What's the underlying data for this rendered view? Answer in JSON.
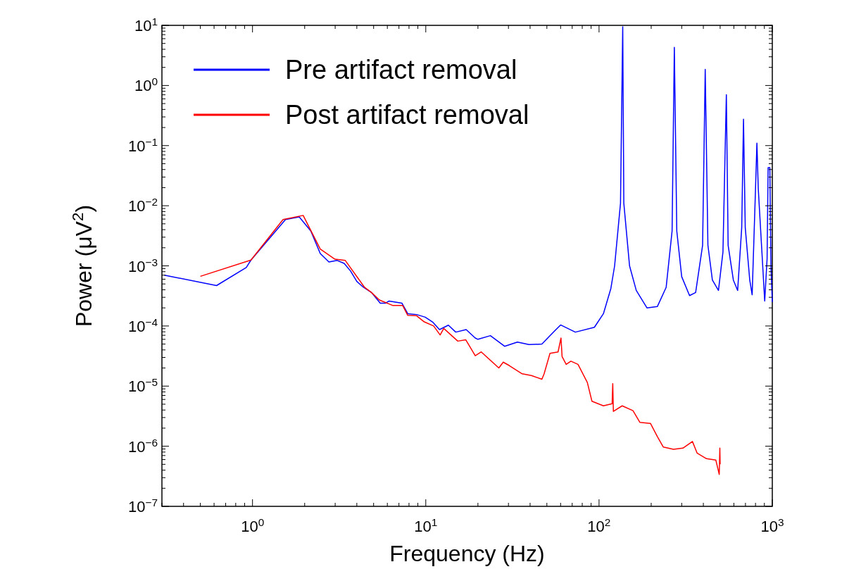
{
  "chart_data": {
    "type": "line",
    "xlabel": "Frequency (Hz)",
    "ylabel": "Power (μV$^{2}$)",
    "log": "xy",
    "grid": false,
    "legend": "top left",
    "line_style": "solid",
    "marker": "none",
    "xlim": [
      0.3,
      1000
    ],
    "ylim": [
      1e-07,
      10
    ],
    "xticks": [
      {
        "value": 0.3,
        "label": null
      },
      {
        "value": 0.4,
        "label": null
      },
      {
        "value": 0.5,
        "label": null
      },
      {
        "value": 0.6,
        "label": null
      },
      {
        "value": 0.7,
        "label": null
      },
      {
        "value": 0.8,
        "label": null
      },
      {
        "value": 0.9,
        "label": null
      },
      {
        "value": 1,
        "label": "10$^{0}$"
      },
      {
        "value": 2,
        "label": null
      },
      {
        "value": 3,
        "label": null
      },
      {
        "value": 4,
        "label": null
      },
      {
        "value": 5,
        "label": null
      },
      {
        "value": 6,
        "label": null
      },
      {
        "value": 7,
        "label": null
      },
      {
        "value": 8,
        "label": null
      },
      {
        "value": 9,
        "label": null
      },
      {
        "value": 10,
        "label": "10$^{1}$"
      },
      {
        "value": 20,
        "label": null
      },
      {
        "value": 30,
        "label": null
      },
      {
        "value": 40,
        "label": null
      },
      {
        "value": 50,
        "label": null
      },
      {
        "value": 60,
        "label": null
      },
      {
        "value": 70,
        "label": null
      },
      {
        "value": 80,
        "label": null
      },
      {
        "value": 90,
        "label": null
      },
      {
        "value": 100,
        "label": "10$^{2}$"
      },
      {
        "value": 200,
        "label": null
      },
      {
        "value": 300,
        "label": null
      },
      {
        "value": 400,
        "label": null
      },
      {
        "value": 500,
        "label": null
      },
      {
        "value": 600,
        "label": null
      },
      {
        "value": 700,
        "label": null
      },
      {
        "value": 800,
        "label": null
      },
      {
        "value": 900,
        "label": null
      },
      {
        "value": 1000,
        "label": "10$^{3}$"
      }
    ],
    "yticks": [
      {
        "value": 1e-07,
        "label": "10$^{−7}$"
      },
      {
        "value": 2e-07,
        "label": null
      },
      {
        "value": 3e-07,
        "label": null
      },
      {
        "value": 4e-07,
        "label": null
      },
      {
        "value": 5e-07,
        "label": null
      },
      {
        "value": 6e-07,
        "label": null
      },
      {
        "value": 7e-07,
        "label": null
      },
      {
        "value": 8e-07,
        "label": null
      },
      {
        "value": 9e-07,
        "label": null
      },
      {
        "value": 1e-06,
        "label": "10$^{−6}$"
      },
      {
        "value": 2e-06,
        "label": null
      },
      {
        "value": 3e-06,
        "label": null
      },
      {
        "value": 4e-06,
        "label": null
      },
      {
        "value": 5e-06,
        "label": null
      },
      {
        "value": 6e-06,
        "label": null
      },
      {
        "value": 7e-06,
        "label": null
      },
      {
        "value": 8e-06,
        "label": null
      },
      {
        "value": 9e-06,
        "label": null
      },
      {
        "value": 1e-05,
        "label": "10$^{−5}$"
      },
      {
        "value": 2e-05,
        "label": null
      },
      {
        "value": 3e-05,
        "label": null
      },
      {
        "value": 4e-05,
        "label": null
      },
      {
        "value": 5e-05,
        "label": null
      },
      {
        "value": 6e-05,
        "label": null
      },
      {
        "value": 7e-05,
        "label": null
      },
      {
        "value": 8e-05,
        "label": null
      },
      {
        "value": 9e-05,
        "label": null
      },
      {
        "value": 0.0001,
        "label": "10$^{−4}$"
      },
      {
        "value": 0.0002,
        "label": null
      },
      {
        "value": 0.0003,
        "label": null
      },
      {
        "value": 0.0004,
        "label": null
      },
      {
        "value": 0.0005,
        "label": null
      },
      {
        "value": 0.0006,
        "label": null
      },
      {
        "value": 0.0007,
        "label": null
      },
      {
        "value": 0.0008,
        "label": null
      },
      {
        "value": 0.0009,
        "label": null
      },
      {
        "value": 0.001,
        "label": "10$^{−3}$"
      },
      {
        "value": 0.002,
        "label": null
      },
      {
        "value": 0.003,
        "label": null
      },
      {
        "value": 0.004,
        "label": null
      },
      {
        "value": 0.005,
        "label": null
      },
      {
        "value": 0.006,
        "label": null
      },
      {
        "value": 0.007,
        "label": null
      },
      {
        "value": 0.008,
        "label": null
      },
      {
        "value": 0.009,
        "label": null
      },
      {
        "value": 0.01,
        "label": "10$^{−2}$"
      },
      {
        "value": 0.02,
        "label": null
      },
      {
        "value": 0.03,
        "label": null
      },
      {
        "value": 0.04,
        "label": null
      },
      {
        "value": 0.05,
        "label": null
      },
      {
        "value": 0.06,
        "label": null
      },
      {
        "value": 0.07,
        "label": null
      },
      {
        "value": 0.08,
        "label": null
      },
      {
        "value": 0.09,
        "label": null
      },
      {
        "value": 0.1,
        "label": "10$^{−1}$"
      },
      {
        "value": 0.2,
        "label": null
      },
      {
        "value": 0.3,
        "label": null
      },
      {
        "value": 0.4,
        "label": null
      },
      {
        "value": 0.5,
        "label": null
      },
      {
        "value": 0.6,
        "label": null
      },
      {
        "value": 0.7,
        "label": null
      },
      {
        "value": 0.8,
        "label": null
      },
      {
        "value": 0.9,
        "label": null
      },
      {
        "value": 1,
        "label": "10$^{0}$"
      },
      {
        "value": 2,
        "label": null
      },
      {
        "value": 3,
        "label": null
      },
      {
        "value": 4,
        "label": null
      },
      {
        "value": 5,
        "label": null
      },
      {
        "value": 6,
        "label": null
      },
      {
        "value": 7,
        "label": null
      },
      {
        "value": 8,
        "label": null
      },
      {
        "value": 9,
        "label": null
      },
      {
        "value": 10,
        "label": "10$^{1}$"
      }
    ],
    "series": [
      {
        "name": "Pre artifact removal",
        "color": "#0000ff",
        "x": [
          0.31,
          0.62,
          0.92,
          0.98,
          1.55,
          1.86,
          2.17,
          2.46,
          2.76,
          3.08,
          3.38,
          3.68,
          4.0,
          4.37,
          4.86,
          5.46,
          5.86,
          6.14,
          7.28,
          7.87,
          8.85,
          9.93,
          11.0,
          12.0,
          13.5,
          14.9,
          17.1,
          19.3,
          20,
          23.6,
          28.5,
          33.8,
          39.4,
          46.8,
          55.5,
          60,
          73,
          94,
          106,
          117,
          123,
          133,
          137,
          139,
          150,
          164,
          189,
          217,
          244,
          264,
          272,
          281,
          300,
          333,
          361,
          396,
          410,
          425,
          451,
          489,
          519,
          543,
          556,
          596,
          631,
          666,
          682,
          698,
          741,
          765,
          800,
          815,
          830,
          871,
          904,
          933,
          946,
          968,
          982,
          1000
        ],
        "values": [
          0.0007,
          0.00047,
          0.00094,
          0.00125,
          0.0059,
          0.0065,
          0.0038,
          0.0016,
          0.00116,
          0.00123,
          0.0011,
          0.00082,
          0.00055,
          0.00044,
          0.00036,
          0.00024,
          0.00024,
          0.00026,
          0.00024,
          0.00016,
          0.000155,
          0.00014,
          0.000115,
          8.7e-05,
          0.000103,
          7.9e-05,
          8.7e-05,
          6.3e-05,
          6e-05,
          6.9e-05,
          4.6e-05,
          5.4e-05,
          4.9e-05,
          5e-05,
          8.3e-05,
          0.000104,
          7.9e-05,
          9.5e-05,
          0.00016,
          0.00042,
          0.001,
          0.011,
          9.5,
          0.011,
          0.001,
          0.00039,
          0.0002,
          0.00021,
          0.00044,
          0.0038,
          4.3,
          0.0038,
          0.00066,
          0.00032,
          0.00036,
          0.0022,
          1.85,
          0.0022,
          0.00058,
          0.00039,
          0.0017,
          0.7,
          0.0022,
          0.00058,
          0.00039,
          0.0043,
          0.275,
          0.0043,
          0.00058,
          0.00033,
          0.019,
          0.11,
          0.019,
          0.0017,
          0.00026,
          0.0013,
          0.043,
          0.043,
          0.001,
          0.00025
        ]
      },
      {
        "name": "Post artifact removal",
        "color": "#ff0000",
        "x": [
          0.5,
          0.98,
          1.5,
          1.96,
          2.46,
          2.99,
          3.43,
          4.43,
          4.86,
          5.4,
          6.43,
          7.35,
          7.87,
          8.85,
          9.8,
          11.1,
          12.1,
          12.7,
          15.3,
          17,
          19.3,
          20.9,
          26.4,
          28,
          30.3,
          36,
          40.7,
          46.8,
          48.2,
          52.1,
          58,
          60.3,
          61.2,
          64.6,
          68.8,
          75.6,
          85.6,
          91,
          106,
          119,
          120,
          121,
          136,
          157,
          172,
          198,
          217,
          235,
          269,
          305,
          346,
          368,
          417,
          472,
          494,
          498,
          500
        ],
        "values": [
          0.00067,
          0.00125,
          0.0059,
          0.0069,
          0.0019,
          0.00129,
          0.00123,
          0.00044,
          0.00036,
          0.00027,
          0.00022,
          0.00022,
          0.00015,
          0.000148,
          0.000117,
          0.0001,
          7.1e-05,
          9.1e-05,
          5.6e-05,
          5.9e-05,
          3.2e-05,
          3.7e-05,
          2e-05,
          2.5e-05,
          2.2e-05,
          1.6e-05,
          1.5e-05,
          1.3e-05,
          1.6e-05,
          3.5e-05,
          3.7e-05,
          6.3e-05,
          3.1e-05,
          2.3e-05,
          2.6e-05,
          2.3e-05,
          1.15e-05,
          5.6e-06,
          4.7e-06,
          5.1e-06,
          1.1e-05,
          3.8e-06,
          4.7e-06,
          3.9e-06,
          2.5e-06,
          2.4e-06,
          1.45e-06,
          9.7e-07,
          8.9e-07,
          9.3e-07,
          1.2e-06,
          7.7e-07,
          6.2e-07,
          5.9e-07,
          3.4e-07,
          9.3e-07,
          5e-07
        ]
      }
    ]
  }
}
